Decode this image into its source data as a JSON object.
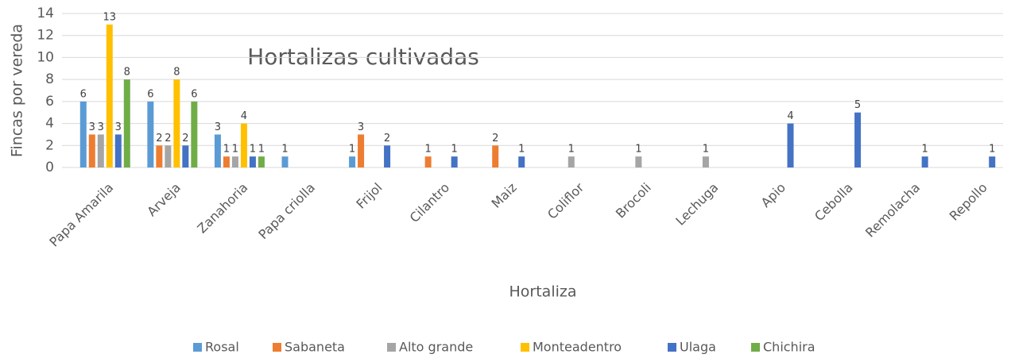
{
  "chart_data": {
    "type": "bar",
    "title": "Hortalizas cultivadas",
    "x_label": "Hortaliza",
    "y_label": "Fincas por vereda",
    "categories": [
      "Papa Amarila",
      "Arveja",
      "Zanahoria",
      "Papa criolla",
      "Frijol",
      "Cilantro",
      "Maiz",
      "Coliflor",
      "Brocoli",
      "Lechuga",
      "Apio",
      "Cebolla",
      "Remolacha",
      "Repollo"
    ],
    "series": [
      {
        "name": "Rosal",
        "color": "#5b9bd5",
        "values": [
          6,
          6,
          3,
          1,
          1,
          null,
          null,
          null,
          null,
          null,
          null,
          null,
          null,
          null
        ]
      },
      {
        "name": "Sabaneta",
        "color": "#ed7d31",
        "values": [
          3,
          2,
          1,
          null,
          3,
          1,
          2,
          null,
          null,
          null,
          null,
          null,
          null,
          null
        ]
      },
      {
        "name": "Alto grande",
        "color": "#a5a5a5",
        "values": [
          3,
          2,
          1,
          null,
          null,
          null,
          null,
          1,
          1,
          1,
          null,
          null,
          null,
          null
        ]
      },
      {
        "name": "Monteadentro",
        "color": "#ffc000",
        "values": [
          13,
          8,
          4,
          null,
          null,
          null,
          null,
          null,
          null,
          null,
          null,
          null,
          null,
          null
        ]
      },
      {
        "name": "Ulaga",
        "color": "#4472c4",
        "values": [
          3,
          2,
          1,
          null,
          2,
          1,
          1,
          null,
          null,
          null,
          4,
          5,
          1,
          1
        ]
      },
      {
        "name": "Chichira",
        "color": "#70ad47",
        "values": [
          8,
          6,
          1,
          null,
          null,
          null,
          null,
          null,
          null,
          null,
          null,
          null,
          null,
          null
        ]
      }
    ],
    "ylim": [
      0,
      14
    ],
    "yticks": [
      0,
      2,
      4,
      6,
      8,
      10,
      12,
      14
    ],
    "grid": true,
    "legend": "bottom"
  }
}
